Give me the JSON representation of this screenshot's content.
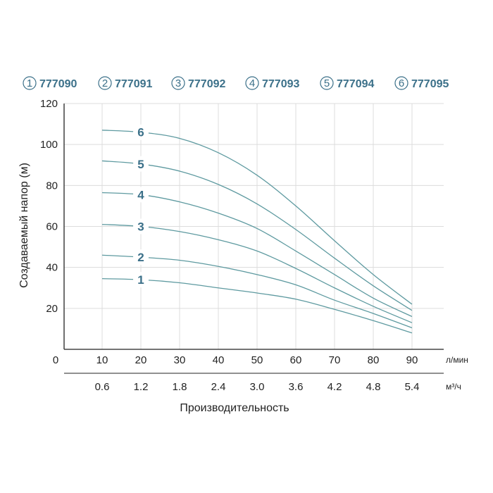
{
  "colors": {
    "accent": "#3b7089",
    "curve": "#5e9aa0",
    "grid": "#dcdcdc",
    "axis": "#222222"
  },
  "chart_data": {
    "type": "line",
    "title": "",
    "ylabel": "Создаваемый напор (м)",
    "xlabel": "Производительность",
    "ylim": [
      0,
      120
    ],
    "xlim": [
      0,
      90
    ],
    "x_unit": "л/мин",
    "x2_unit": "м³/ч",
    "y_ticks": [
      "120",
      "100",
      "80",
      "60",
      "40",
      "20"
    ],
    "x_ticks": [
      "0",
      "10",
      "20",
      "30",
      "40",
      "50",
      "60",
      "70",
      "80",
      "90"
    ],
    "x2_ticks": [
      "0.6",
      "1.2",
      "1.8",
      "2.4",
      "3.0",
      "3.6",
      "4.2",
      "4.8",
      "5.4"
    ],
    "grid": true,
    "legend": [
      {
        "num": "1",
        "code": "777090"
      },
      {
        "num": "2",
        "code": "777091"
      },
      {
        "num": "3",
        "code": "777092"
      },
      {
        "num": "4",
        "code": "777093"
      },
      {
        "num": "5",
        "code": "777094"
      },
      {
        "num": "6",
        "code": "777095"
      }
    ],
    "x": [
      10,
      20,
      30,
      40,
      50,
      60,
      70,
      80,
      90
    ],
    "series": [
      {
        "label": "1",
        "values": [
          34.5,
          34.0,
          32.5,
          30.0,
          27.5,
          24.5,
          19.5,
          14.0,
          8.0
        ]
      },
      {
        "label": "2",
        "values": [
          46.0,
          45.0,
          43.5,
          40.5,
          36.5,
          31.5,
          24.0,
          17.5,
          10.5
        ]
      },
      {
        "label": "3",
        "values": [
          61.0,
          60.0,
          57.5,
          53.5,
          48.0,
          39.5,
          30.0,
          21.0,
          13.0
        ]
      },
      {
        "label": "4",
        "values": [
          76.5,
          75.5,
          72.0,
          66.5,
          59.0,
          48.0,
          36.5,
          25.0,
          16.0
        ]
      },
      {
        "label": "5",
        "values": [
          92.0,
          90.5,
          87.0,
          80.5,
          71.0,
          58.5,
          44.5,
          31.0,
          19.0
        ]
      },
      {
        "label": "6",
        "values": [
          107.0,
          106.0,
          103.0,
          96.0,
          85.0,
          70.0,
          53.0,
          36.5,
          22.0
        ]
      }
    ]
  }
}
